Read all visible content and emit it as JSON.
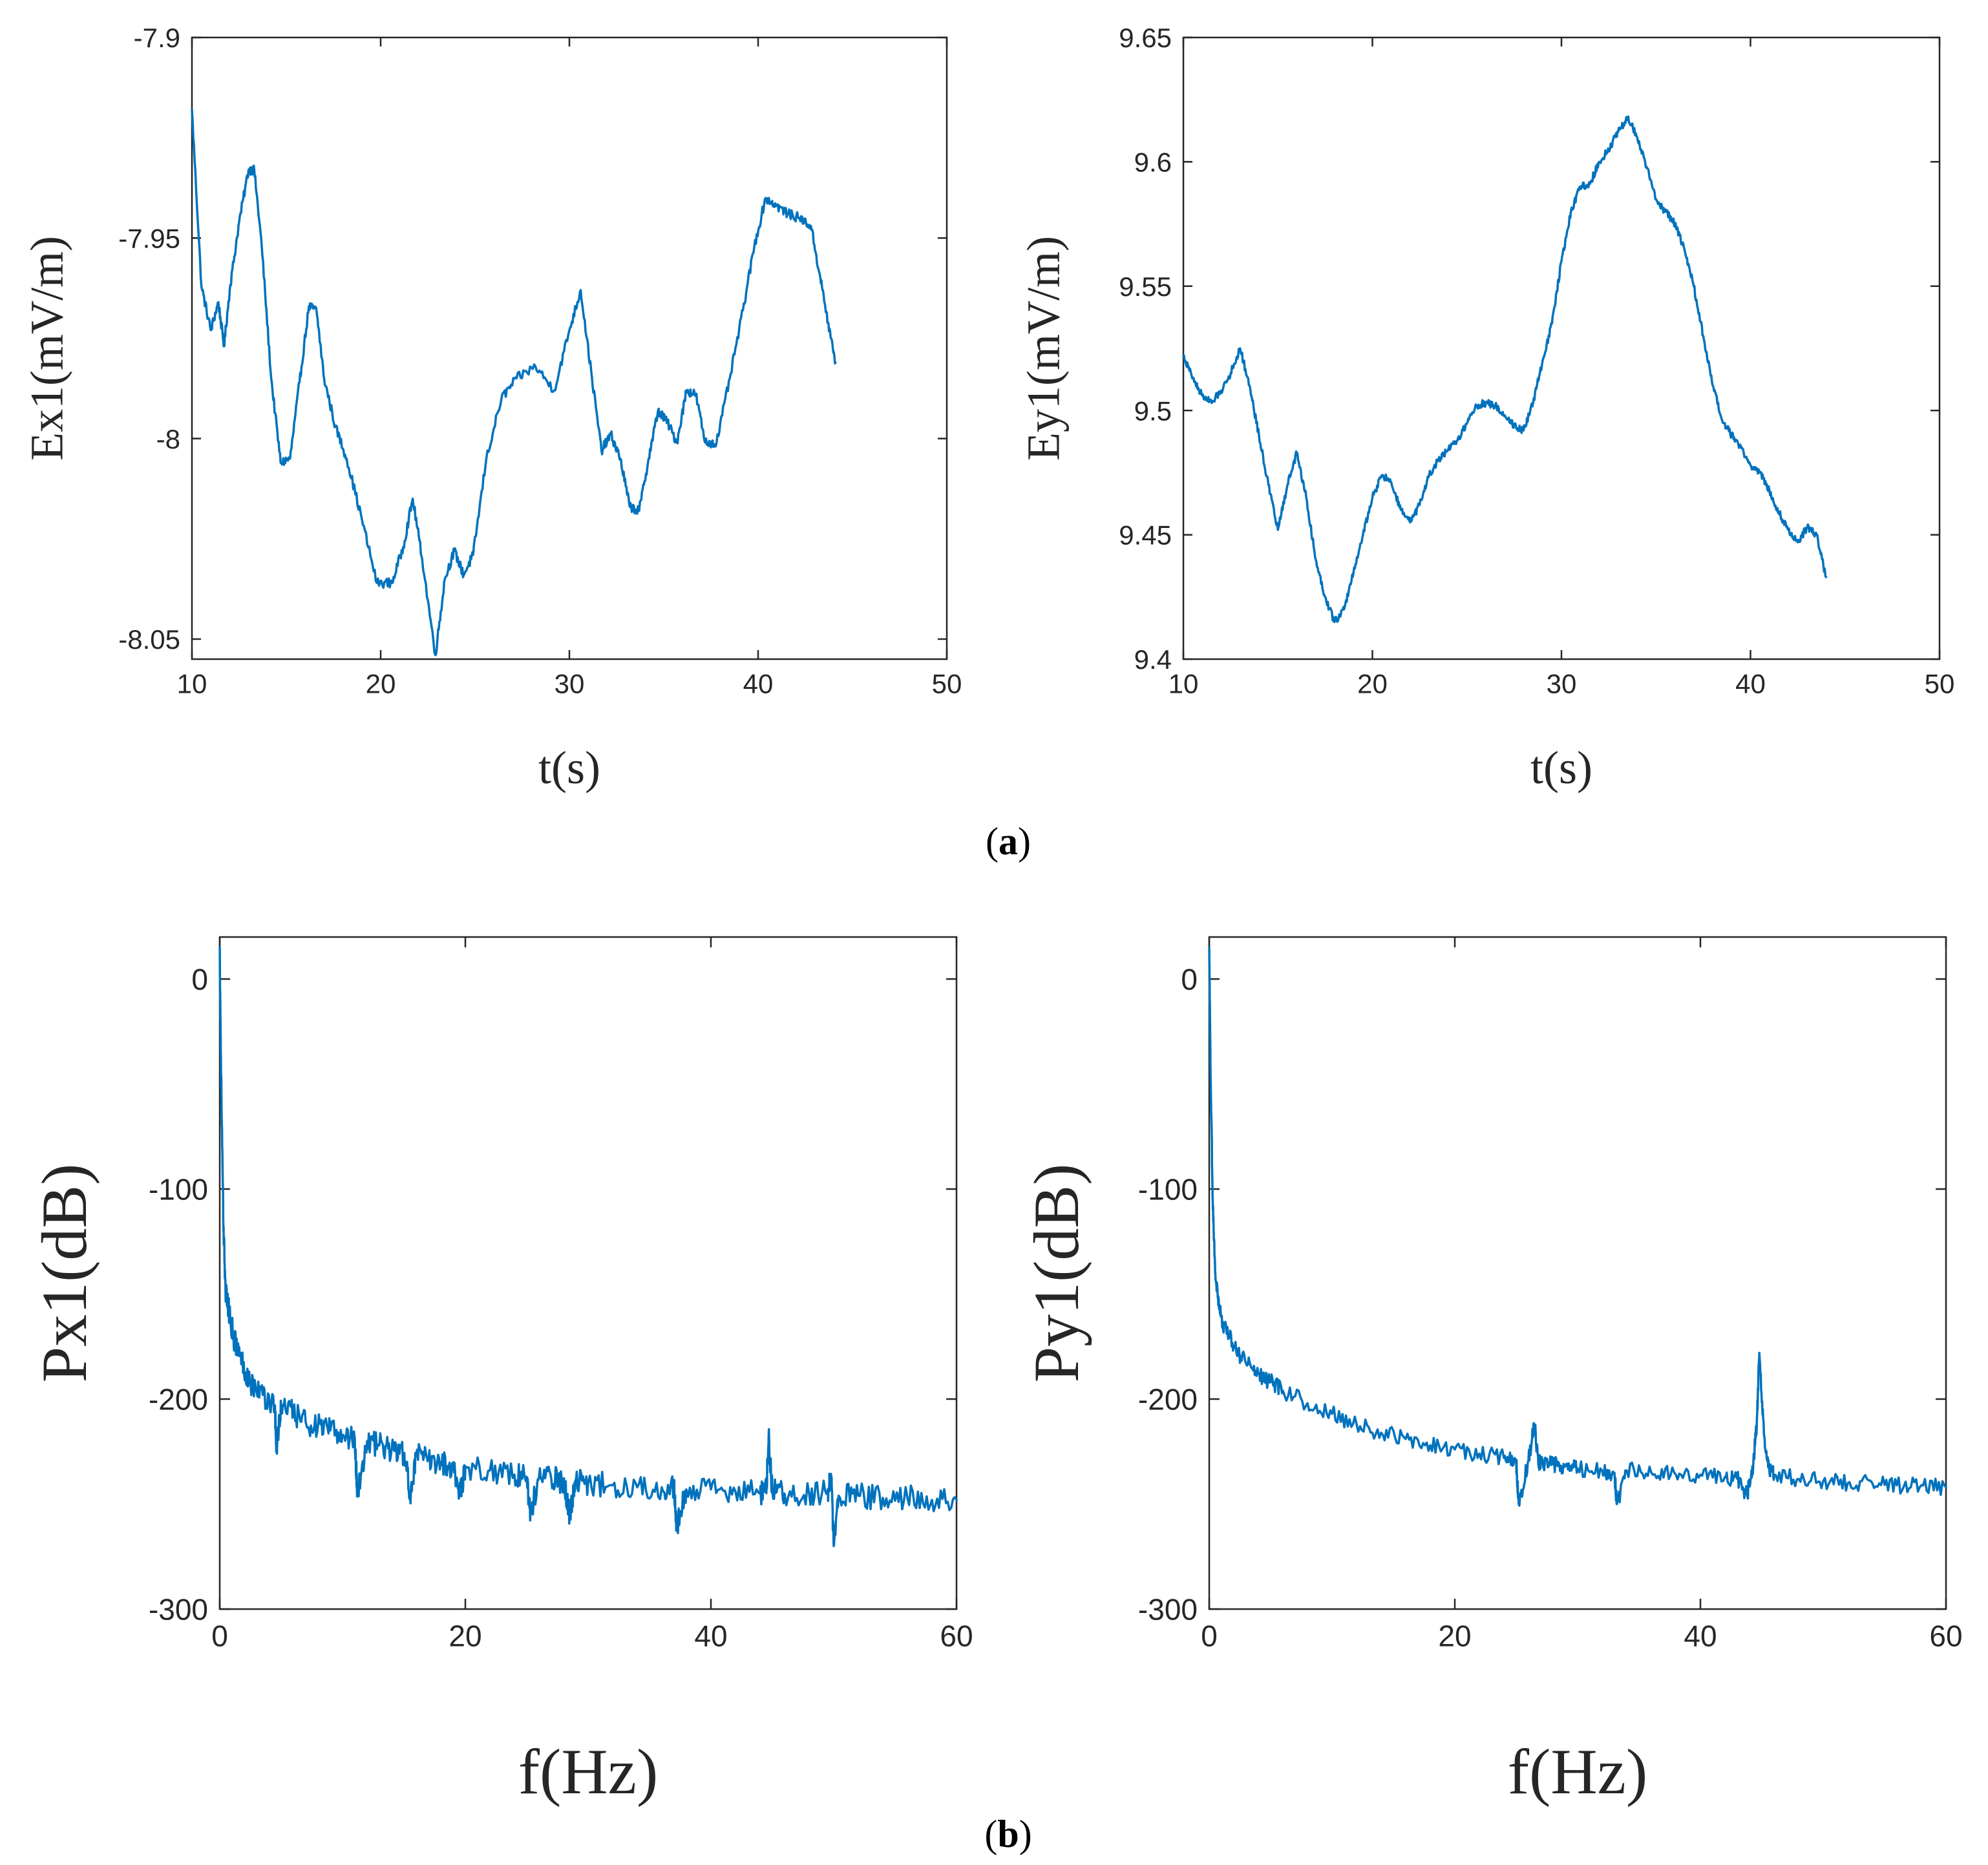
{
  "colors": {
    "series": "#0072BD",
    "axis": "#262626"
  },
  "captions": {
    "a": "a",
    "b": "b"
  },
  "chart_data": [
    {
      "id": "ex1",
      "type": "line",
      "xlabel": "t(s)",
      "ylabel": "Ex1(mV/m)",
      "xlim": [
        10,
        50
      ],
      "ylim": [
        -8.055,
        -7.9
      ],
      "xticks": [
        10,
        20,
        30,
        40,
        50
      ],
      "xtick_labels": [
        "10",
        "20",
        "30",
        "40",
        "50"
      ],
      "yticks": [
        -8.05,
        -8,
        -7.95,
        -7.9
      ],
      "ytick_labels": [
        "-8.05",
        "-8",
        "-7.95",
        "-7.9"
      ],
      "noise": 0.0012,
      "series": [
        {
          "name": "Ex1",
          "x": [
            10,
            10.5,
            11,
            11.4,
            11.7,
            12,
            12.5,
            13,
            13.3,
            13.7,
            14.2,
            14.7,
            15.2,
            15.7,
            16.2,
            16.6,
            17,
            17.6,
            18.2,
            19,
            19.8,
            20.6,
            21.2,
            21.7,
            22.2,
            22.9,
            23.4,
            23.9,
            24.4,
            24.9,
            25.6,
            26.4,
            27.2,
            28.2,
            29.2,
            30,
            30.6,
            31.2,
            31.7,
            32.2,
            32.7,
            33.2,
            33.7,
            34.2,
            34.7,
            35.2,
            35.7,
            36.2,
            36.7,
            37.2,
            37.8,
            38.5,
            39.2,
            39.8,
            40.4,
            41,
            41.6,
            42.2,
            42.8,
            43.3,
            43.7,
            44.1
          ],
          "y": [
            -7.918,
            -7.962,
            -7.973,
            -7.966,
            -7.977,
            -7.963,
            -7.946,
            -7.933,
            -7.933,
            -7.952,
            -7.985,
            -8.006,
            -8.005,
            -7.986,
            -7.967,
            -7.968,
            -7.985,
            -7.997,
            -8.005,
            -8.02,
            -8.036,
            -8.036,
            -8.027,
            -8.015,
            -8.03,
            -8.054,
            -8.035,
            -8.028,
            -8.034,
            -8.029,
            -8.005,
            -7.99,
            -7.985,
            -7.982,
            -7.988,
            -7.973,
            -7.963,
            -7.985,
            -8.003,
            -7.999,
            -8.005,
            -8.017,
            -8.018,
            -8.005,
            -7.993,
            -7.996,
            -8.001,
            -7.988,
            -7.989,
            -8.001,
            -8.001,
            -7.985,
            -7.968,
            -7.952,
            -7.94,
            -7.942,
            -7.944,
            -7.945,
            -7.947,
            -7.96,
            -7.971,
            -7.981
          ]
        }
      ]
    },
    {
      "id": "ey1",
      "type": "line",
      "xlabel": "t(s)",
      "ylabel": "Ey1(mV/m)",
      "xlim": [
        10,
        50
      ],
      "ylim": [
        9.4,
        9.65
      ],
      "xticks": [
        10,
        20,
        30,
        40,
        50
      ],
      "xtick_labels": [
        "10",
        "20",
        "30",
        "40",
        "50"
      ],
      "yticks": [
        9.4,
        9.45,
        9.5,
        9.55,
        9.6,
        9.65
      ],
      "ytick_labels": [
        "9.4",
        "9.45",
        "9.5",
        "9.55",
        "9.6",
        "9.65"
      ],
      "noise": 0.0015,
      "series": [
        {
          "name": "Ey1",
          "x": [
            10,
            10.5,
            11,
            11.5,
            12,
            12.5,
            13,
            13.5,
            14,
            14.5,
            15,
            15.5,
            16,
            16.5,
            17,
            17.5,
            18,
            18.5,
            19,
            19.5,
            20,
            20.5,
            21,
            21.5,
            22,
            22.5,
            23,
            23.5,
            24,
            24.5,
            25,
            25.5,
            26,
            26.5,
            27,
            27.5,
            28,
            28.5,
            29,
            29.5,
            30,
            30.5,
            31,
            31.5,
            32,
            32.5,
            33,
            33.5,
            34,
            34.5,
            35,
            35.5,
            36,
            36.5,
            37,
            37.5,
            38,
            38.5,
            39,
            39.5,
            40,
            40.5,
            41,
            41.5,
            42,
            42.5,
            43,
            43.5,
            44
          ],
          "y": [
            9.522,
            9.513,
            9.506,
            9.503,
            9.508,
            9.515,
            9.525,
            9.51,
            9.49,
            9.47,
            9.452,
            9.47,
            9.483,
            9.465,
            9.44,
            9.425,
            9.415,
            9.42,
            9.435,
            9.45,
            9.465,
            9.474,
            9.471,
            9.46,
            9.455,
            9.462,
            9.474,
            9.48,
            9.484,
            9.488,
            9.495,
            9.502,
            9.503,
            9.502,
            9.498,
            9.494,
            9.492,
            9.503,
            9.52,
            9.535,
            9.56,
            9.58,
            9.59,
            9.591,
            9.6,
            9.605,
            9.612,
            9.618,
            9.61,
            9.598,
            9.585,
            9.58,
            9.575,
            9.565,
            9.55,
            9.53,
            9.51,
            9.496,
            9.49,
            9.485,
            9.478,
            9.475,
            9.468,
            9.459,
            9.452,
            9.447,
            9.453,
            9.45,
            9.433
          ]
        }
      ]
    },
    {
      "id": "px1",
      "type": "line",
      "xlabel": "f(Hz)",
      "ylabel": "Px1(dB)",
      "xlim": [
        0,
        60
      ],
      "ylim": [
        -300,
        20
      ],
      "xticks": [
        0,
        20,
        40,
        60
      ],
      "xtick_labels": [
        "0",
        "20",
        "40",
        "60"
      ],
      "yticks": [
        -300,
        -200,
        -100,
        0
      ],
      "ytick_labels": [
        "-300",
        "-200",
        "-100",
        "0"
      ],
      "noise": 6,
      "series": [
        {
          "name": "Px1",
          "x": [
            0,
            0.1,
            0.3,
            0.5,
            0.8,
            1.2,
            1.8,
            2.5,
            3.5,
            4.5,
            4.6,
            5,
            6,
            7,
            8,
            9,
            10,
            11,
            11.2,
            12,
            13,
            14,
            15,
            15.5,
            16,
            17,
            18,
            19,
            19.6,
            20,
            22,
            24,
            25,
            25.3,
            26,
            27,
            28,
            28.5,
            29,
            30,
            32,
            34,
            36,
            37,
            37.2,
            38,
            40,
            42,
            44,
            44.5,
            44.7,
            45,
            46,
            48,
            49.5,
            49.8,
            50,
            50.4,
            52,
            54,
            56,
            58,
            60
          ],
          "y": [
            15,
            -40,
            -120,
            -150,
            -160,
            -172,
            -182,
            -192,
            -198,
            -203,
            -225,
            -203,
            -207,
            -211,
            -213,
            -215,
            -217,
            -219,
            -245,
            -220,
            -222,
            -224,
            -226,
            -245,
            -227,
            -229,
            -230,
            -232,
            -245,
            -232,
            -234,
            -236,
            -237,
            -255,
            -237,
            -238,
            -239,
            -255,
            -239,
            -240,
            -241,
            -242,
            -242,
            -242,
            -262,
            -243,
            -243,
            -244,
            -245,
            -244,
            -218,
            -244,
            -245,
            -245,
            -244,
            -238,
            -270,
            -246,
            -246,
            -247,
            -247,
            -248,
            -248
          ]
        }
      ]
    },
    {
      "id": "py1",
      "type": "line",
      "xlabel": "f(Hz)",
      "ylabel": "Py1(dB)",
      "xlim": [
        0,
        60
      ],
      "ylim": [
        -300,
        20
      ],
      "xticks": [
        0,
        20,
        40,
        60
      ],
      "xtick_labels": [
        "0",
        "20",
        "40",
        "60"
      ],
      "yticks": [
        -300,
        -200,
        -100,
        0
      ],
      "ytick_labels": [
        "-300",
        "-200",
        "-100",
        "0"
      ],
      "noise": 4,
      "series": [
        {
          "name": "Py1",
          "x": [
            0,
            0.1,
            0.3,
            0.5,
            0.8,
            1.2,
            2,
            3,
            4,
            5,
            6,
            8,
            10,
            12,
            14,
            16,
            18,
            20,
            22,
            24,
            25,
            25.2,
            26,
            26.5,
            26.8,
            27,
            28,
            29,
            30,
            32,
            33,
            33.2,
            34,
            36,
            38,
            40,
            42,
            43,
            43.8,
            44.3,
            44.6,
            44.8,
            45.2,
            45.6,
            46,
            48,
            50,
            52,
            54,
            56,
            58,
            60
          ],
          "y": [
            15,
            -40,
            -110,
            -140,
            -157,
            -165,
            -175,
            -183,
            -188,
            -192,
            -196,
            -202,
            -207,
            -212,
            -216,
            -219,
            -222,
            -224,
            -226,
            -228,
            -230,
            -250,
            -229,
            -212,
            -231,
            -230,
            -231,
            -232,
            -233,
            -234,
            -235,
            -250,
            -234,
            -235,
            -236,
            -236,
            -237,
            -238,
            -246,
            -232,
            -210,
            -178,
            -218,
            -233,
            -236,
            -238,
            -239,
            -240,
            -240,
            -241,
            -241,
            -242
          ]
        }
      ]
    }
  ]
}
